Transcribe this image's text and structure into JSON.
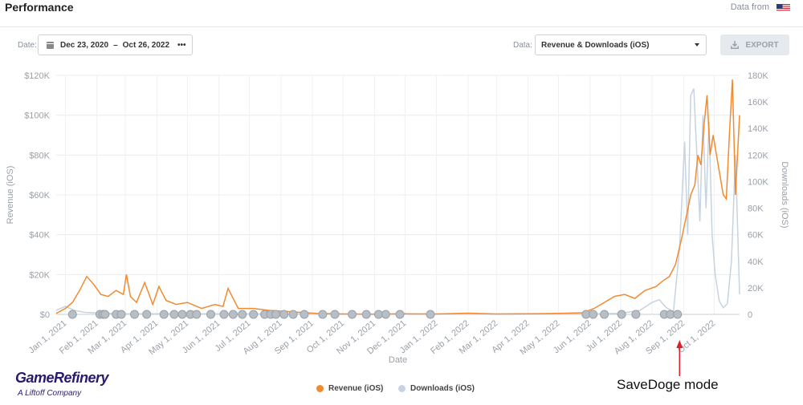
{
  "header": {
    "title": "Performance",
    "data_from": "Data from"
  },
  "filters": {
    "date_label": "Date:",
    "date_start": "Dec 23, 2020",
    "date_sep": "–",
    "date_end": "Oct 26, 2022",
    "more": "•••",
    "data_label": "Data:",
    "data_selected": "Revenue & Downloads (iOS)",
    "export_label": "EXPORT"
  },
  "legend": {
    "revenue": "Revenue (iOS)",
    "downloads": "Downloads (iOS)"
  },
  "branding": {
    "name": "GameRefinery",
    "tagline": "A Liftoff Company"
  },
  "annotation": {
    "text": "SaveDoge mode"
  },
  "colors": {
    "revenue": "#f28a30",
    "downloads": "#c6d3e0",
    "event_marker": "#b8bec6",
    "annotation_arrow": "#e01e2b"
  },
  "chart_data": {
    "type": "line",
    "xlabel": "Date",
    "ylabel": "Revenue (iOS)",
    "y2label": "Downloads (iOS)",
    "ylim": [
      0,
      120000
    ],
    "y2lim": [
      0,
      180000
    ],
    "yticks": [
      "$0",
      "$20K",
      "$40K",
      "$60K",
      "$80K",
      "$100K",
      "$120K"
    ],
    "y2ticks": [
      "0",
      "20K",
      "40K",
      "60K",
      "80K",
      "100K",
      "120K",
      "140K",
      "160K",
      "180K"
    ],
    "xticks": [
      "Jan 1, 2021",
      "Feb 1, 2021",
      "Mar 1, 2021",
      "Apr 1, 2021",
      "May 1, 2021",
      "Jun 1, 2021",
      "Jul 1, 2021",
      "Aug 1, 2021",
      "Sep 1, 2021",
      "Oct 1, 2021",
      "Nov 1, 2021",
      "Dec 1, 2021",
      "Jan 1, 2022",
      "Feb 1, 2022",
      "Mar 1, 2022",
      "Apr 1, 2022",
      "May 1, 2022",
      "Jun 1, 2022",
      "Jul 1, 2022",
      "Aug 1, 2022",
      "Sep 1, 2022",
      "Oct 1, 2022"
    ],
    "xrange": [
      "2020-12-23",
      "2022-10-26"
    ],
    "grid": true,
    "legend_position": "bottom-center",
    "series": [
      {
        "name": "Revenue (iOS)",
        "axis": "left",
        "x": [
          "2020-12-23",
          "2021-01-01",
          "2021-01-08",
          "2021-01-15",
          "2021-01-22",
          "2021-01-29",
          "2021-02-05",
          "2021-02-12",
          "2021-02-20",
          "2021-02-27",
          "2021-03-02",
          "2021-03-06",
          "2021-03-12",
          "2021-03-20",
          "2021-03-28",
          "2021-04-03",
          "2021-04-10",
          "2021-04-20",
          "2021-05-01",
          "2021-05-15",
          "2021-05-28",
          "2021-06-05",
          "2021-06-10",
          "2021-06-20",
          "2021-07-05",
          "2021-07-20",
          "2021-08-05",
          "2021-08-20",
          "2021-09-05",
          "2021-10-01",
          "2021-11-01",
          "2021-12-01",
          "2022-01-01",
          "2022-02-01",
          "2022-03-01",
          "2022-04-01",
          "2022-05-01",
          "2022-05-25",
          "2022-06-05",
          "2022-06-15",
          "2022-06-25",
          "2022-07-05",
          "2022-07-15",
          "2022-07-25",
          "2022-08-05",
          "2022-08-12",
          "2022-08-18",
          "2022-08-24",
          "2022-08-30",
          "2022-09-04",
          "2022-09-08",
          "2022-09-12",
          "2022-09-15",
          "2022-09-18",
          "2022-09-21",
          "2022-09-24",
          "2022-09-27",
          "2022-09-30",
          "2022-10-05",
          "2022-10-10",
          "2022-10-13",
          "2022-10-16",
          "2022-10-19",
          "2022-10-22",
          "2022-10-26"
        ],
        "y": [
          500,
          3000,
          6000,
          12000,
          19000,
          15000,
          10000,
          9000,
          12000,
          10000,
          20000,
          9000,
          6000,
          16000,
          5000,
          14000,
          7000,
          5000,
          6000,
          3000,
          5000,
          4000,
          13000,
          3000,
          3000,
          2000,
          1500,
          1000,
          500,
          200,
          100,
          300,
          200,
          600,
          200,
          300,
          500,
          800,
          3000,
          6000,
          9000,
          10000,
          8000,
          12000,
          14000,
          17000,
          19000,
          25000,
          38000,
          50000,
          60000,
          65000,
          80000,
          75000,
          95000,
          110000,
          80000,
          90000,
          75000,
          60000,
          58000,
          90000,
          118000,
          60000,
          100000
        ]
      },
      {
        "name": "Downloads (iOS)",
        "axis": "right",
        "x": [
          "2020-12-23",
          "2021-01-01",
          "2021-01-10",
          "2021-01-20",
          "2021-02-01",
          "2021-03-01",
          "2021-05-01",
          "2021-08-01",
          "2021-12-01",
          "2022-03-01",
          "2022-06-01",
          "2022-07-01",
          "2022-07-20",
          "2022-08-01",
          "2022-08-08",
          "2022-08-15",
          "2022-08-22",
          "2022-08-28",
          "2022-09-02",
          "2022-09-05",
          "2022-09-08",
          "2022-09-11",
          "2022-09-14",
          "2022-09-17",
          "2022-09-20",
          "2022-09-23",
          "2022-09-26",
          "2022-09-29",
          "2022-10-02",
          "2022-10-06",
          "2022-10-10",
          "2022-10-14",
          "2022-10-18",
          "2022-10-22",
          "2022-10-26"
        ],
        "y": [
          3000,
          6000,
          3000,
          1500,
          1000,
          500,
          400,
          300,
          200,
          200,
          300,
          800,
          3000,
          9000,
          11000,
          5000,
          2000,
          50000,
          130000,
          60000,
          165000,
          170000,
          120000,
          70000,
          150000,
          80000,
          145000,
          60000,
          30000,
          10000,
          5000,
          8000,
          40000,
          120000,
          15000
        ]
      }
    ],
    "event_markers": [
      "2021-01-08",
      "2021-02-04",
      "2021-02-07",
      "2021-02-09",
      "2021-02-20",
      "2021-02-25",
      "2021-03-10",
      "2021-03-22",
      "2021-04-08",
      "2021-04-18",
      "2021-04-26",
      "2021-05-04",
      "2021-05-10",
      "2021-05-24",
      "2021-06-06",
      "2021-06-15",
      "2021-06-24",
      "2021-07-05",
      "2021-07-16",
      "2021-07-22",
      "2021-07-27",
      "2021-08-04",
      "2021-08-13",
      "2021-08-24",
      "2021-09-11",
      "2021-09-23",
      "2021-10-10",
      "2021-10-24",
      "2021-11-05",
      "2021-11-12",
      "2021-11-26",
      "2021-12-26",
      "2022-05-28",
      "2022-06-04",
      "2022-06-15",
      "2022-07-02",
      "2022-07-16",
      "2022-08-13",
      "2022-08-19",
      "2022-08-26"
    ]
  }
}
